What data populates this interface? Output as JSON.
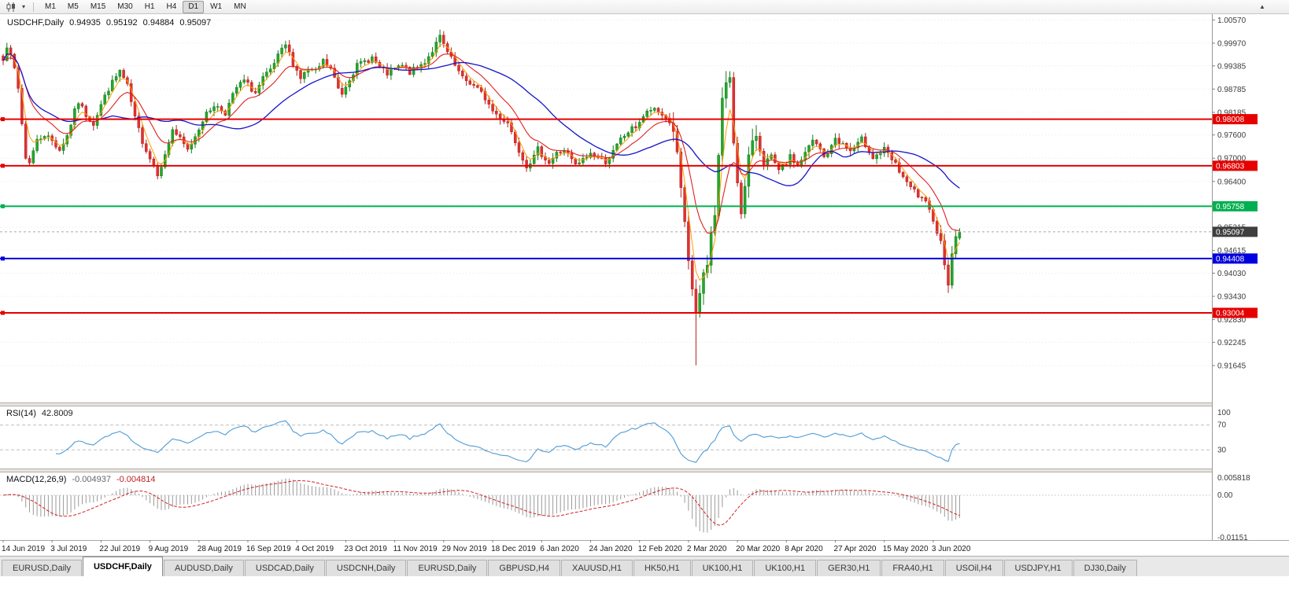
{
  "toolbar": {
    "timeframes": [
      "M1",
      "M5",
      "M15",
      "M30",
      "H1",
      "H4",
      "D1",
      "W1",
      "MN"
    ],
    "active_timeframe": "D1",
    "icons": [
      "candlestick-chart-icon",
      "dropdown-caret-icon"
    ],
    "scroll_up_glyph": "▲"
  },
  "chart": {
    "title": {
      "symbol": "USDCHF,Daily",
      "open": "0.94935",
      "high": "0.95192",
      "low": "0.94884",
      "close": "0.95097"
    },
    "price_axis_ticks": [
      "1.00570",
      "0.99970",
      "0.99385",
      "0.98785",
      "0.98185",
      "0.97600",
      "0.97000",
      "0.96400",
      "0.95815",
      "0.95215",
      "0.94615",
      "0.94030",
      "0.93430",
      "0.92830",
      "0.92245",
      "0.91645"
    ],
    "hlines": [
      {
        "price": 0.98008,
        "label": "0.98008",
        "color": "#e60000"
      },
      {
        "price": 0.96803,
        "label": "0.96803",
        "color": "#e60000"
      },
      {
        "price": 0.95758,
        "label": "0.95758",
        "color": "#00b050"
      },
      {
        "price": 0.94408,
        "label": "0.94408",
        "color": "#0000e0"
      },
      {
        "price": 0.93004,
        "label": "0.93004",
        "color": "#e60000"
      }
    ],
    "current_price": {
      "value": 0.95097,
      "label": "0.95097",
      "badge_color": "#3f3f3f"
    }
  },
  "chart_data": {
    "type": "candlestick",
    "symbol": "USDCHF",
    "timeframe": "Daily",
    "price_scale": {
      "top": 1.0072,
      "bottom": 0.9069
    },
    "bars_visible": 255,
    "anchors": [
      [
        0,
        0.996
      ],
      [
        1,
        0.9992
      ],
      [
        3,
        0.993
      ],
      [
        4,
        0.988
      ],
      [
        6,
        0.97
      ],
      [
        7,
        0.9692
      ],
      [
        9,
        0.9745
      ],
      [
        11,
        0.9762
      ],
      [
        13,
        0.9745
      ],
      [
        15,
        0.9722
      ],
      [
        17,
        0.9758
      ],
      [
        19,
        0.982
      ],
      [
        20,
        0.9845
      ],
      [
        22,
        0.9812
      ],
      [
        24,
        0.979
      ],
      [
        26,
        0.9838
      ],
      [
        28,
        0.988
      ],
      [
        30,
        0.991
      ],
      [
        31,
        0.9925
      ],
      [
        33,
        0.9885
      ],
      [
        35,
        0.9802
      ],
      [
        37,
        0.9745
      ],
      [
        39,
        0.97
      ],
      [
        41,
        0.9662
      ],
      [
        43,
        0.9705
      ],
      [
        45,
        0.9775
      ],
      [
        47,
        0.9748
      ],
      [
        49,
        0.972
      ],
      [
        51,
        0.9758
      ],
      [
        53,
        0.98
      ],
      [
        56,
        0.9838
      ],
      [
        59,
        0.9818
      ],
      [
        62,
        0.9882
      ],
      [
        64,
        0.99
      ],
      [
        67,
        0.9868
      ],
      [
        69,
        0.9905
      ],
      [
        71,
        0.9925
      ],
      [
        73,
        0.9962
      ],
      [
        75,
        0.9992
      ],
      [
        77,
        0.9945
      ],
      [
        79,
        0.9908
      ],
      [
        81,
        0.9928
      ],
      [
        83,
        0.9922
      ],
      [
        85,
        0.995
      ],
      [
        87,
        0.993
      ],
      [
        89,
        0.988
      ],
      [
        90,
        0.9868
      ],
      [
        92,
        0.9908
      ],
      [
        94,
        0.9938
      ],
      [
        96,
        0.995
      ],
      [
        98,
        0.996
      ],
      [
        100,
        0.9932
      ],
      [
        102,
        0.9918
      ],
      [
        104,
        0.993
      ],
      [
        106,
        0.9938
      ],
      [
        108,
        0.9922
      ],
      [
        110,
        0.9932
      ],
      [
        112,
        0.995
      ],
      [
        114,
        0.9978
      ],
      [
        116,
        1.0012
      ],
      [
        118,
        0.9972
      ],
      [
        120,
        0.9938
      ],
      [
        122,
        0.9905
      ],
      [
        124,
        0.9895
      ],
      [
        126,
        0.9878
      ],
      [
        128,
        0.9855
      ],
      [
        130,
        0.9822
      ],
      [
        132,
        0.9805
      ],
      [
        134,
        0.9792
      ],
      [
        136,
        0.9745
      ],
      [
        138,
        0.97
      ],
      [
        139,
        0.9682
      ],
      [
        141,
        0.9702
      ],
      [
        142,
        0.9722
      ],
      [
        144,
        0.97
      ],
      [
        145,
        0.9688
      ],
      [
        147,
        0.9712
      ],
      [
        149,
        0.9722
      ],
      [
        151,
        0.9695
      ],
      [
        152,
        0.968
      ],
      [
        154,
        0.9695
      ],
      [
        156,
        0.9712
      ],
      [
        158,
        0.97
      ],
      [
        160,
        0.9692
      ],
      [
        162,
        0.9715
      ],
      [
        164,
        0.9748
      ],
      [
        166,
        0.9768
      ],
      [
        168,
        0.9782
      ],
      [
        170,
        0.9808
      ],
      [
        172,
        0.9825
      ],
      [
        174,
        0.9818
      ],
      [
        176,
        0.9806
      ],
      [
        178,
        0.9775
      ],
      [
        179,
        0.9705
      ],
      [
        180,
        0.9622
      ],
      [
        181,
        0.9522
      ],
      [
        182,
        0.9425
      ],
      [
        183,
        0.9362
      ],
      [
        184,
        0.9302
      ],
      [
        185,
        0.9345
      ],
      [
        186,
        0.9392
      ],
      [
        187,
        0.9422
      ],
      [
        188,
        0.9502
      ],
      [
        189,
        0.9562
      ],
      [
        190,
        0.9702
      ],
      [
        191,
        0.9858
      ],
      [
        192,
        0.9892
      ],
      [
        193,
        0.9898
      ],
      [
        194,
        0.9742
      ],
      [
        195,
        0.9642
      ],
      [
        196,
        0.9568
      ],
      [
        197,
        0.9622
      ],
      [
        198,
        0.9702
      ],
      [
        199,
        0.9732
      ],
      [
        200,
        0.9762
      ],
      [
        201,
        0.9722
      ],
      [
        202,
        0.9688
      ],
      [
        204,
        0.9702
      ],
      [
        206,
        0.9665
      ],
      [
        208,
        0.9688
      ],
      [
        209,
        0.9702
      ],
      [
        211,
        0.9682
      ],
      [
        213,
        0.9712
      ],
      [
        215,
        0.9745
      ],
      [
        217,
        0.9722
      ],
      [
        218,
        0.9702
      ],
      [
        220,
        0.9728
      ],
      [
        221,
        0.9752
      ],
      [
        223,
        0.9735
      ],
      [
        225,
        0.9718
      ],
      [
        227,
        0.9735
      ],
      [
        228,
        0.9748
      ],
      [
        230,
        0.9722
      ],
      [
        231,
        0.9702
      ],
      [
        233,
        0.9715
      ],
      [
        234,
        0.9722
      ],
      [
        236,
        0.9695
      ],
      [
        237,
        0.9682
      ],
      [
        239,
        0.9652
      ],
      [
        240,
        0.9632
      ],
      [
        242,
        0.9615
      ],
      [
        243,
        0.9602
      ],
      [
        245,
        0.9582
      ],
      [
        246,
        0.9562
      ],
      [
        247,
        0.9545
      ],
      [
        248,
        0.9512
      ],
      [
        249,
        0.9482
      ],
      [
        250,
        0.9432
      ],
      [
        251,
        0.938
      ],
      [
        252,
        0.9445
      ],
      [
        253,
        0.9502
      ],
      [
        254,
        0.95097
      ]
    ],
    "wick_extremes": [
      {
        "day": 1,
        "high": 0.9998
      },
      {
        "day": 116,
        "high": 1.0032
      },
      {
        "day": 184,
        "low": 0.9165
      },
      {
        "day": 191,
        "high": 0.988
      },
      {
        "day": 193,
        "high": 0.9918
      },
      {
        "day": 196,
        "low": 0.9552
      },
      {
        "day": 251,
        "low": 0.9374
      }
    ],
    "overlays": [
      {
        "name": "ma-fast",
        "period": 4,
        "color_key": "ma_fast"
      },
      {
        "name": "ma-mid",
        "period": 12,
        "color_key": "ma_mid"
      },
      {
        "name": "ma-slow",
        "period": 30,
        "color_key": "ma_slow"
      }
    ],
    "date_ticks": [
      {
        "label": "14 Jun 2019",
        "day": 0
      },
      {
        "label": "3 Jul 2019",
        "day": 13
      },
      {
        "label": "22 Jul 2019",
        "day": 26
      },
      {
        "label": "9 Aug 2019",
        "day": 39
      },
      {
        "label": "28 Aug 2019",
        "day": 52
      },
      {
        "label": "16 Sep 2019",
        "day": 65
      },
      {
        "label": "4 Oct 2019",
        "day": 78
      },
      {
        "label": "23 Oct 2019",
        "day": 91
      },
      {
        "label": "11 Nov 2019",
        "day": 104
      },
      {
        "label": "29 Nov 2019",
        "day": 117
      },
      {
        "label": "18 Dec 2019",
        "day": 130
      },
      {
        "label": "6 Jan 2020",
        "day": 143
      },
      {
        "label": "24 Jan 2020",
        "day": 156
      },
      {
        "label": "12 Feb 2020",
        "day": 169
      },
      {
        "label": "2 Mar 2020",
        "day": 182
      },
      {
        "label": "20 Mar 2020",
        "day": 195
      },
      {
        "label": "8 Apr 2020",
        "day": 208
      },
      {
        "label": "27 Apr 2020",
        "day": 221
      },
      {
        "label": "15 May 2020",
        "day": 234
      },
      {
        "label": "3 Jun 2020",
        "day": 247
      }
    ]
  },
  "rsi_panel": {
    "label": "RSI(14)",
    "value": "42.8009",
    "period": 14,
    "levels": [
      "100",
      "70",
      "30"
    ],
    "level_values": [
      100,
      70,
      30
    ]
  },
  "macd_panel": {
    "label": "MACD(12,26,9)",
    "value_main": "-0.004937",
    "value_signal": "-0.004814",
    "axis_ticks": [
      "0.005818",
      "0.00",
      "-0.01151"
    ],
    "axis_tick_values": [
      0.005818,
      0,
      -0.01151
    ],
    "scale": {
      "top": 0.0062,
      "bottom": -0.0122
    }
  },
  "tabs": {
    "items": [
      "EURUSD,Daily",
      "USDCHF,Daily",
      "AUDUSD,Daily",
      "USDCAD,Daily",
      "USDCNH,Daily",
      "EURUSD,Daily",
      "GBPUSD,H4",
      "XAUUSD,H1",
      "HK50,H1",
      "UK100,H1",
      "UK100,H1",
      "GER30,H1",
      "FRA40,H1",
      "USOil,H4",
      "USDJPY,H1",
      "DJ30,Daily"
    ],
    "active_index": 1
  },
  "colors": {
    "bull_fill": "#22a82a",
    "bull_stroke": "#157a1d",
    "bear_fill": "#e23131",
    "bear_stroke": "#b31f1f",
    "ma_fast": "#ff9d00",
    "ma_mid": "#e02020",
    "ma_slow": "#1414c8",
    "rsi_line": "#4f9bd5",
    "macd_hist": "#9a9a9a",
    "macd_signal": "#d22222",
    "grid": "#e7e7e7",
    "axis_text": "#3c3c3c",
    "current_line": "#a8a8a8"
  }
}
